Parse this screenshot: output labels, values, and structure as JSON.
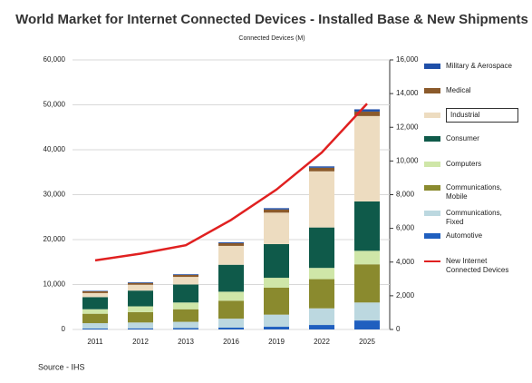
{
  "chart_data": {
    "type": "bar",
    "title": "World Market for Internet Connected Devices - Installed Base & New Shipments",
    "subtitle": "Connected Devices (M)",
    "source": "Source - IHS",
    "stacked": true,
    "grid": true,
    "categories": [
      "2011",
      "2012",
      "2013",
      "2016",
      "2019",
      "2022",
      "2025"
    ],
    "series": [
      {
        "name": "Automotive",
        "color": "#1f5fbf",
        "values": [
          200,
          250,
          300,
          400,
          600,
          1000,
          2000
        ]
      },
      {
        "name": "Communications, Fixed",
        "color": "#bcd8e0",
        "values": [
          1200,
          1300,
          1400,
          2000,
          2700,
          3700,
          4000
        ]
      },
      {
        "name": "Communications, Mobile",
        "color": "#8a8a2e",
        "values": [
          2100,
          2300,
          2800,
          4000,
          6000,
          6500,
          8500
        ]
      },
      {
        "name": "Computers",
        "color": "#cfe6a8",
        "values": [
          1000,
          1300,
          1500,
          2000,
          2200,
          2500,
          3000
        ]
      },
      {
        "name": "Consumer",
        "color": "#0f5a4a",
        "values": [
          2700,
          3500,
          4000,
          6000,
          7500,
          9000,
          11000
        ]
      },
      {
        "name": "Industrial",
        "color": "#eddcc0",
        "values": [
          900,
          1300,
          1700,
          4200,
          7000,
          12500,
          19000
        ]
      },
      {
        "name": "Medical",
        "color": "#8b5a2b",
        "values": [
          400,
          400,
          450,
          600,
          700,
          800,
          1000
        ]
      },
      {
        "name": "Military & Aerospace",
        "color": "#1f4fa8",
        "values": [
          100,
          150,
          150,
          200,
          300,
          300,
          500
        ]
      },
      {
        "name": "New Internet Connected Devices",
        "color": "#e02020",
        "type": "line",
        "axis": "y2",
        "values": [
          4100,
          4500,
          5000,
          6500,
          8300,
          10500,
          13400
        ]
      }
    ],
    "ylim": [
      0,
      60000
    ],
    "yticks": [
      0,
      {
        "value": 10000,
        "label": "10,000"
      },
      {
        "value": 20000,
        "label": "20,000"
      },
      {
        "value": 30000,
        "label": "30,000"
      },
      {
        "value": 40000,
        "label": "40,000"
      },
      {
        "value": 50000,
        "label": "50,000"
      },
      {
        "value": 60000,
        "label": "60,000"
      }
    ],
    "y2lim": [
      0,
      16000
    ],
    "y2ticks": [
      0,
      {
        "value": 2000,
        "label": "2,000"
      },
      {
        "value": 4000,
        "label": "4,000"
      },
      {
        "value": 6000,
        "label": "6,000"
      },
      {
        "value": 8000,
        "label": "8,000"
      },
      {
        "value": 10000,
        "label": "10,000"
      },
      {
        "value": 12000,
        "label": "12,000"
      },
      {
        "value": 14000,
        "label": "14,000"
      },
      {
        "value": 16000,
        "label": "16,000"
      }
    ]
  }
}
